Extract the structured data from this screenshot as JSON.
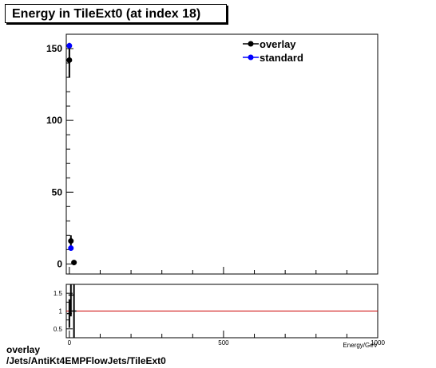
{
  "title": "Energy in TileExt0 (at index 18)",
  "footer": {
    "line1": "overlay",
    "line2": "/Jets/AntiKt4EMPFlowJets/TileExt0"
  },
  "chart_data": [
    {
      "type": "scatter",
      "title": "Energy in TileExt0 (at index 18)",
      "xlabel": "Energy/GeV",
      "ylabel": "",
      "xlim": [
        -10,
        1000
      ],
      "ylim": [
        -7,
        160
      ],
      "x_ticks": [
        0,
        500,
        1000
      ],
      "y_ticks": [
        0,
        50,
        100,
        150
      ],
      "legend": {
        "placement": "top-right"
      },
      "series": [
        {
          "name": "overlay",
          "color": "#000000",
          "points": [
            {
              "x": 0,
              "y": 142,
              "yerr": 12
            },
            {
              "x": 5,
              "y": 16,
              "yerr": 4
            },
            {
              "x": 15,
              "y": 1,
              "yerr": 1
            }
          ]
        },
        {
          "name": "standard",
          "color": "#0000ff",
          "points": [
            {
              "x": 0,
              "y": 152,
              "yerr": 0
            },
            {
              "x": 5,
              "y": 11,
              "yerr": 0
            }
          ]
        }
      ]
    },
    {
      "type": "scatter",
      "xlim": [
        -10,
        1000
      ],
      "ylim": [
        0.25,
        1.75
      ],
      "x_ticks": [
        0,
        500,
        1000
      ],
      "y_ticks": [
        0.5,
        1,
        1.5
      ],
      "reference_line": {
        "y": 1,
        "color": "#cc0000"
      },
      "series": [
        {
          "name": "",
          "color": "#000000",
          "points": [
            {
              "x": 0,
              "y": 0.93,
              "yerr": 0.4
            },
            {
              "x": 5,
              "y": 1.45,
              "yerr": 0.6
            },
            {
              "x": 15,
              "y": 1.0,
              "yerr": 1.0
            }
          ]
        }
      ]
    }
  ]
}
